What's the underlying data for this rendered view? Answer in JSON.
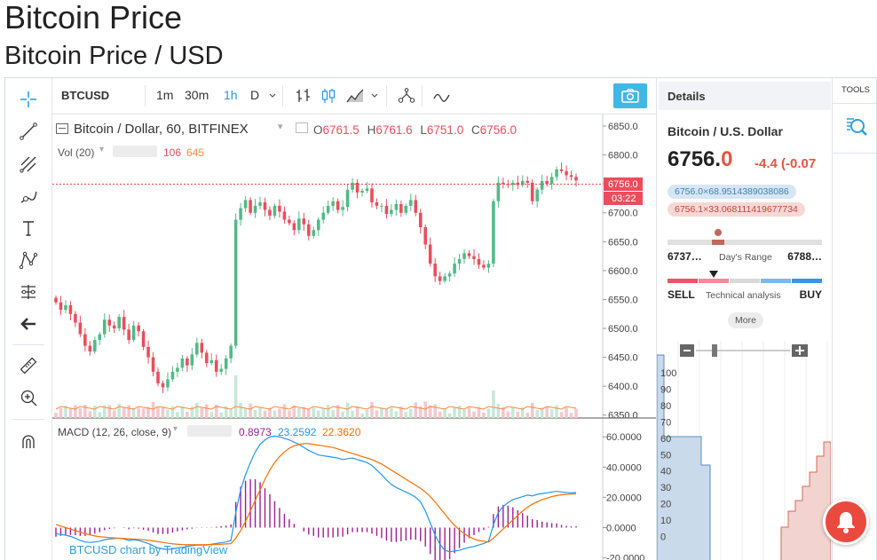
{
  "page": {
    "title": "Bitcoin Price",
    "subtitle": "Bitcoin Price / USD"
  },
  "left_toolbar": [
    {
      "name": "crosshair-icon"
    },
    {
      "name": "trend-line-icon"
    },
    {
      "name": "fib-icon"
    },
    {
      "name": "brush-icon"
    },
    {
      "name": "text-tool-icon"
    },
    {
      "name": "pattern-icon"
    },
    {
      "name": "prediction-icon"
    },
    {
      "name": "back-arrow-icon"
    },
    {
      "name": "ruler-icon"
    },
    {
      "name": "zoom-icon"
    },
    {
      "name": "magnet-icon"
    }
  ],
  "top_toolbar": {
    "symbol": "BTCUSD",
    "timeframes": [
      "1m",
      "30m",
      "1h",
      "D"
    ],
    "active_timeframe": "1h"
  },
  "chart": {
    "legend_title": "Bitcoin / Dollar, 60, BITFINEX",
    "ohlc": {
      "o_label": "O",
      "o": "6761.5",
      "h_label": "H",
      "h": "6761.6",
      "l_label": "L",
      "l": "6751.0",
      "c_label": "C",
      "c": "6756.0"
    },
    "volume_label": "Vol (20)",
    "volume_values": [
      "106",
      "645"
    ],
    "price_tag": "6756.0",
    "countdown": "03:22",
    "macd_label": "MACD (12, 26, close, 9)",
    "macd_values": [
      "0.8973",
      "23.2592",
      "22.3620"
    ],
    "watermark": "BTCUSD chart by TradingView"
  },
  "chart_data": {
    "type": "candlestick",
    "price_axis": [
      "6850.0",
      "6800.0",
      "6750.0",
      "6700.0",
      "6650.0",
      "6600.0",
      "6550.0",
      "6500.0",
      "6450.0",
      "6400.0",
      "6350.0"
    ],
    "price_ticks": [
      6850,
      6800,
      6750,
      6700,
      6650,
      6600,
      6550,
      6500,
      6450,
      6400,
      6350
    ],
    "ylim": [
      6345,
      6870
    ],
    "macd_axis": [
      "60.0000",
      "40.0000",
      "20.0000",
      "0.0000",
      "-20.0000"
    ],
    "macd_ticks": [
      60,
      40,
      20,
      0,
      -20
    ],
    "macd_ylim": [
      -22,
      66
    ],
    "closes": [
      6545,
      6532,
      6540,
      6525,
      6510,
      6490,
      6470,
      6460,
      6480,
      6490,
      6515,
      6505,
      6500,
      6520,
      6498,
      6480,
      6505,
      6495,
      6468,
      6450,
      6425,
      6405,
      6398,
      6412,
      6425,
      6432,
      6448,
      6436,
      6455,
      6475,
      6458,
      6440,
      6445,
      6425,
      6430,
      6448,
      6470,
      6688,
      6708,
      6722,
      6700,
      6712,
      6718,
      6705,
      6695,
      6712,
      6702,
      6688,
      6682,
      6670,
      6690,
      6680,
      6660,
      6670,
      6688,
      6700,
      6712,
      6720,
      6705,
      6710,
      6740,
      6752,
      6735,
      6738,
      6742,
      6718,
      6712,
      6712,
      6698,
      6705,
      6715,
      6700,
      6712,
      6722,
      6700,
      6675,
      6645,
      6612,
      6590,
      6582,
      6590,
      6595,
      6612,
      6620,
      6630,
      6625,
      6620,
      6610,
      6605,
      6612,
      6720,
      6752,
      6750,
      6748,
      6752,
      6748,
      6755,
      6752,
      6720,
      6740,
      6755,
      6750,
      6762,
      6775,
      6772,
      6765,
      6762,
      6756
    ],
    "macd_line": [
      -4.0,
      -4.5,
      -5.0,
      -5.8,
      -7.0,
      -8.5,
      -9.5,
      -9.8,
      -9.5,
      -9.0,
      -8.0,
      -7.5,
      -7.2,
      -7.0,
      -7.5,
      -8.5,
      -8.0,
      -8.5,
      -9.5,
      -10.5,
      -12.0,
      -13.5,
      -14.0,
      -14.5,
      -14.0,
      -13.5,
      -13.0,
      -12.5,
      -12.0,
      -11.5,
      -11.5,
      -11.5,
      -11.0,
      -10.5,
      -10.0,
      -9.5,
      -8.5,
      10.0,
      25.0,
      35.0,
      43.0,
      50.0,
      55.0,
      58.0,
      60.0,
      60.5,
      60.0,
      59.0,
      58.0,
      56.5,
      55.0,
      53.0,
      51.0,
      49.5,
      48.0,
      47.5,
      47.0,
      46.5,
      46.0,
      45.0,
      45.5,
      46.0,
      45.0,
      44.0,
      43.0,
      41.0,
      38.0,
      35.0,
      31.5,
      28.5,
      26.5,
      25.0,
      23.5,
      22.0,
      20.0,
      17.0,
      11.0,
      3.0,
      -5.0,
      -11.0,
      -15.0,
      -16.0,
      -15.5,
      -15.0,
      -14.0,
      -13.0,
      -12.5,
      -11.5,
      -10.5,
      -9.0,
      2.0,
      10.0,
      14.0,
      16.5,
      18.5,
      19.5,
      20.5,
      21.5,
      21.0,
      22.0,
      22.5,
      23.0,
      23.5,
      24.0,
      23.5,
      23.2,
      23.0,
      23.26
    ],
    "signal_line": [
      2.0,
      1.0,
      0.0,
      -1.0,
      -2.0,
      -3.0,
      -4.0,
      -4.8,
      -5.5,
      -6.0,
      -6.3,
      -6.6,
      -6.8,
      -7.0,
      -7.2,
      -7.4,
      -7.6,
      -7.8,
      -8.0,
      -8.4,
      -8.8,
      -9.3,
      -9.8,
      -10.3,
      -10.7,
      -11.0,
      -11.2,
      -11.3,
      -11.3,
      -11.3,
      -11.3,
      -11.3,
      -11.2,
      -11.1,
      -11.0,
      -10.8,
      -10.6,
      -7.0,
      -2.0,
      4.0,
      11.0,
      18.0,
      25.0,
      32.0,
      38.0,
      43.0,
      47.0,
      50.0,
      52.5,
      54.0,
      55.0,
      55.5,
      55.5,
      55.0,
      54.5,
      54.0,
      53.5,
      53.0,
      52.0,
      51.0,
      50.0,
      49.0,
      48.0,
      47.0,
      46.0,
      45.0,
      43.5,
      42.0,
      40.0,
      38.0,
      36.0,
      34.0,
      32.0,
      30.0,
      28.0,
      26.0,
      23.5,
      20.5,
      17.0,
      13.0,
      9.0,
      5.0,
      1.5,
      -1.5,
      -4.0,
      -6.0,
      -7.5,
      -8.5,
      -9.0,
      -9.5,
      -7.0,
      -4.0,
      -1.0,
      2.0,
      5.0,
      8.0,
      11.0,
      13.5,
      15.5,
      17.0,
      18.5,
      19.5,
      20.5,
      21.2,
      21.7,
      22.0,
      22.2,
      22.36
    ],
    "volume_ticks": [
      "100",
      "90",
      "80",
      "70",
      "60",
      "50",
      "40",
      "30",
      "20",
      "10",
      "0"
    ],
    "volume_tick_values": [
      100,
      90,
      80,
      70,
      60,
      50,
      40,
      30,
      20,
      10,
      0
    ],
    "volume_ylim": [
      -3,
      112
    ]
  },
  "details": {
    "header": "Details",
    "symbol_name": "Bitcoin / U.S. Dollar",
    "price_main": "6756.",
    "price_last": "0",
    "change": "-4.4 (-0.07",
    "bid": "6756.0×68.9514389038086",
    "ask": "6756.1×33.068111419677734",
    "range_low": "6737…",
    "range_high": "6788…",
    "range_label": "Day's Range",
    "range_position": 0.4,
    "ta_sell": "SELL",
    "ta_buy": "BUY",
    "ta_label": "Technical analysis",
    "more": "More"
  },
  "tools_panel": {
    "label": "TOOLS"
  },
  "colors": {
    "up": "#53b987",
    "down": "#eb4d5c",
    "macd": "#2196f3",
    "signal": "#ff6d00",
    "histogram": "#9c1f94",
    "accent": "#41b7e6"
  }
}
